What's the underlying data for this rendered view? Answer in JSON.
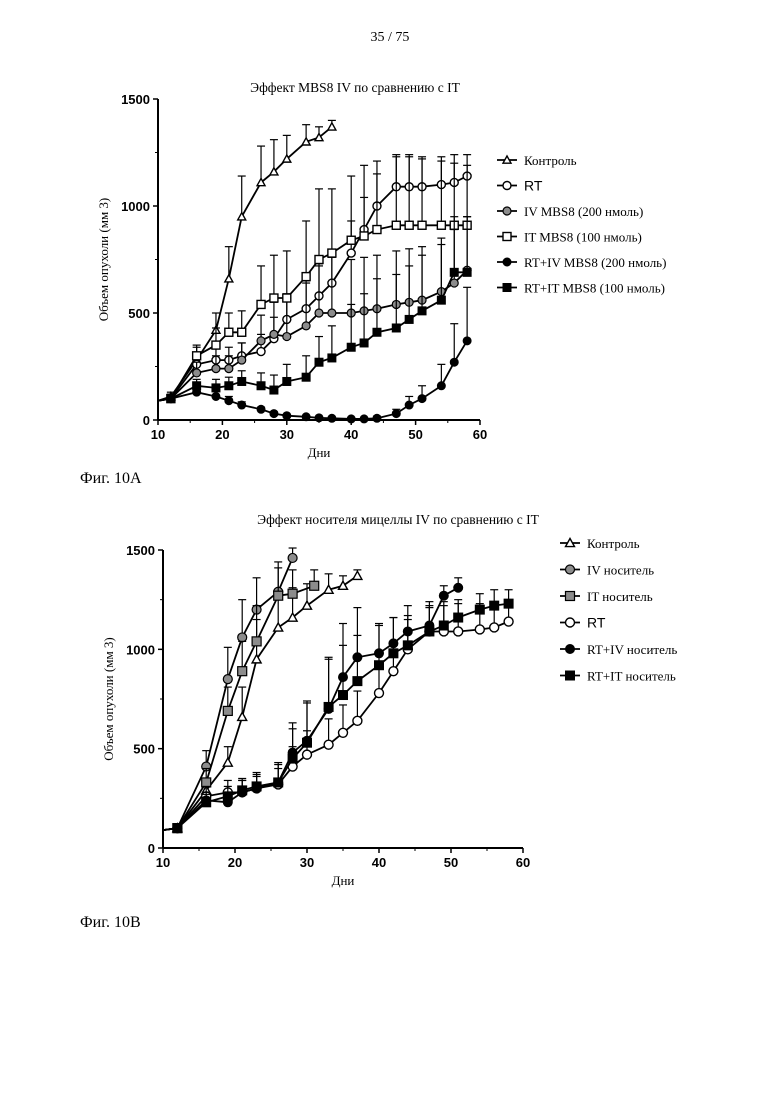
{
  "page": {
    "number": "35 / 75"
  },
  "figures": [
    {
      "caption": "Фиг. 10А"
    },
    {
      "caption": "Фиг. 10В"
    }
  ],
  "chart_data": [
    {
      "type": "line",
      "title": "Эффект MBS8 IV по сравнению с IT",
      "xlabel": "Дни",
      "ylabel": "Объем опухоли (мм 3)",
      "xlim": [
        10,
        60
      ],
      "ylim": [
        0,
        1500
      ],
      "xticks": [
        "10",
        "20",
        "30",
        "40",
        "50",
        "60"
      ],
      "yticks": [
        "0",
        "500",
        "1000",
        "1500"
      ],
      "legend_position": "right",
      "series": [
        {
          "name": "Контроль",
          "marker": "triangle-open",
          "x": [
            10,
            12,
            16,
            19,
            21,
            23,
            26,
            28,
            30,
            33,
            35,
            37
          ],
          "y": [
            90,
            110,
            280,
            420,
            660,
            950,
            1110,
            1160,
            1220,
            1300,
            1320,
            1370
          ],
          "err": [
            0,
            20,
            60,
            80,
            150,
            190,
            170,
            150,
            110,
            80,
            50,
            30
          ]
        },
        {
          "name": "RT",
          "marker": "circle-open",
          "x": [
            10,
            12,
            16,
            19,
            21,
            23,
            26,
            28,
            30,
            33,
            35,
            37,
            40,
            42,
            44,
            47,
            49,
            51,
            54,
            56,
            58
          ],
          "y": [
            90,
            100,
            260,
            280,
            280,
            300,
            320,
            380,
            470,
            520,
            580,
            640,
            780,
            890,
            1000,
            1090,
            1090,
            1090,
            1100,
            1110,
            1140
          ],
          "err": [
            0,
            20,
            50,
            60,
            60,
            60,
            80,
            100,
            120,
            130,
            140,
            150,
            150,
            150,
            150,
            150,
            150,
            140,
            130,
            130,
            100
          ]
        },
        {
          "name": "IV MBS8 (200 нмоль)",
          "marker": "circle-gray",
          "x": [
            10,
            12,
            16,
            19,
            21,
            23,
            26,
            28,
            30,
            33,
            35,
            37,
            40,
            42,
            44,
            47,
            49,
            51,
            54,
            56,
            58
          ],
          "y": [
            90,
            100,
            220,
            240,
            240,
            280,
            370,
            400,
            390,
            440,
            500,
            500,
            500,
            510,
            520,
            540,
            550,
            560,
            600,
            640,
            700
          ],
          "err": [
            0,
            20,
            50,
            60,
            60,
            80,
            120,
            150,
            170,
            200,
            230,
            260,
            250,
            250,
            250,
            250,
            250,
            250,
            250,
            250,
            250
          ]
        },
        {
          "name": "IT MBS8 (100 нмоль)",
          "marker": "square-open",
          "x": [
            10,
            12,
            16,
            19,
            21,
            23,
            26,
            28,
            30,
            33,
            35,
            37,
            40,
            42,
            44,
            47,
            49,
            51,
            54,
            56,
            58
          ],
          "y": [
            90,
            100,
            300,
            350,
            410,
            410,
            540,
            570,
            570,
            670,
            750,
            780,
            840,
            860,
            890,
            910,
            910,
            910,
            910,
            910,
            910
          ],
          "err": [
            0,
            20,
            50,
            80,
            90,
            100,
            180,
            200,
            220,
            260,
            330,
            300,
            300,
            330,
            320,
            320,
            320,
            310,
            300,
            290,
            280
          ]
        },
        {
          "name": "RT+IV MBS8 (200 нмоль)",
          "marker": "circle-filled",
          "x": [
            10,
            12,
            16,
            19,
            21,
            23,
            26,
            28,
            30,
            33,
            35,
            37,
            40,
            42,
            44,
            47,
            49,
            51,
            54,
            56,
            58
          ],
          "y": [
            90,
            100,
            130,
            110,
            90,
            70,
            50,
            30,
            20,
            15,
            10,
            8,
            5,
            5,
            8,
            30,
            70,
            100,
            160,
            270,
            370
          ],
          "err": [
            0,
            10,
            30,
            30,
            20,
            15,
            10,
            8,
            5,
            5,
            5,
            5,
            5,
            5,
            10,
            20,
            40,
            60,
            100,
            180,
            250
          ]
        },
        {
          "name": "RT+IT MBS8 (100 нмоль)",
          "marker": "square-filled",
          "x": [
            10,
            12,
            16,
            19,
            21,
            23,
            26,
            28,
            30,
            33,
            35,
            37,
            40,
            42,
            44,
            47,
            49,
            51,
            54,
            56,
            58
          ],
          "y": [
            90,
            100,
            160,
            150,
            160,
            180,
            160,
            140,
            180,
            200,
            270,
            290,
            340,
            360,
            410,
            430,
            470,
            510,
            560,
            690,
            690
          ],
          "err": [
            0,
            20,
            30,
            40,
            40,
            50,
            60,
            70,
            80,
            100,
            120,
            150,
            200,
            230,
            250,
            250,
            250,
            260,
            260,
            260,
            260
          ]
        }
      ]
    },
    {
      "type": "line",
      "title": "Эффект носителя мицеллы IV по сравнению с IT",
      "xlabel": "Дни",
      "ylabel": "Объем опухоли (мм 3)",
      "xlim": [
        10,
        60
      ],
      "ylim": [
        0,
        1500
      ],
      "xticks": [
        "10",
        "20",
        "30",
        "40",
        "50",
        "60"
      ],
      "yticks": [
        "0",
        "500",
        "1000",
        "1500"
      ],
      "legend_position": "right",
      "series": [
        {
          "name": "Контроль",
          "marker": "triangle-open",
          "x": [
            10,
            12,
            16,
            19,
            21,
            23,
            26,
            28,
            30,
            33,
            35,
            37
          ],
          "y": [
            90,
            100,
            290,
            430,
            660,
            950,
            1110,
            1160,
            1220,
            1300,
            1320,
            1370
          ],
          "err": [
            0,
            20,
            60,
            80,
            150,
            200,
            170,
            150,
            110,
            80,
            50,
            30
          ]
        },
        {
          "name": "IV носитель",
          "marker": "circle-gray",
          "x": [
            10,
            12,
            16,
            19,
            21,
            23,
            26,
            28
          ],
          "y": [
            90,
            100,
            410,
            850,
            1060,
            1200,
            1290,
            1460
          ],
          "err": [
            0,
            20,
            80,
            160,
            190,
            160,
            120,
            50
          ]
        },
        {
          "name": "IT носитель",
          "marker": "square-gray",
          "x": [
            10,
            12,
            16,
            19,
            21,
            23,
            26,
            28,
            31
          ],
          "y": [
            90,
            100,
            330,
            690,
            890,
            1040,
            1270,
            1280,
            1320
          ],
          "err": [
            0,
            20,
            70,
            120,
            150,
            180,
            170,
            120,
            80
          ]
        },
        {
          "name": "RT",
          "marker": "circle-open",
          "x": [
            10,
            12,
            16,
            19,
            21,
            23,
            26,
            28,
            30,
            33,
            35,
            37,
            40,
            42,
            44,
            47,
            49,
            51,
            54,
            56,
            58
          ],
          "y": [
            90,
            100,
            260,
            280,
            280,
            300,
            320,
            410,
            470,
            520,
            580,
            640,
            780,
            890,
            1000,
            1090,
            1090,
            1090,
            1100,
            1110,
            1140
          ],
          "err": [
            0,
            20,
            50,
            60,
            60,
            60,
            80,
            100,
            120,
            130,
            140,
            150,
            150,
            150,
            150,
            150,
            150,
            140,
            130,
            130,
            100
          ]
        },
        {
          "name": "RT+IV носитель",
          "marker": "circle-filled",
          "x": [
            10,
            12,
            16,
            19,
            21,
            23,
            26,
            28,
            30,
            33,
            35,
            37,
            40,
            42,
            44,
            47,
            49,
            51
          ],
          "y": [
            90,
            100,
            240,
            230,
            280,
            300,
            330,
            480,
            540,
            700,
            860,
            960,
            980,
            1030,
            1090,
            1120,
            1270,
            1310
          ],
          "err": [
            0,
            15,
            40,
            50,
            60,
            70,
            100,
            150,
            200,
            250,
            270,
            250,
            150,
            130,
            130,
            100,
            50,
            50
          ]
        },
        {
          "name": "RT+IT носитель",
          "marker": "square-filled",
          "x": [
            10,
            12,
            16,
            19,
            21,
            23,
            26,
            28,
            30,
            33,
            35,
            37,
            40,
            42,
            44,
            47,
            49,
            51,
            54,
            56,
            58
          ],
          "y": [
            90,
            100,
            230,
            260,
            290,
            310,
            330,
            450,
            530,
            710,
            770,
            840,
            920,
            980,
            1020,
            1090,
            1120,
            1160,
            1200,
            1220,
            1230
          ],
          "err": [
            0,
            15,
            40,
            50,
            60,
            70,
            90,
            150,
            200,
            250,
            250,
            230,
            200,
            180,
            150,
            120,
            100,
            90,
            80,
            80,
            70
          ]
        }
      ]
    }
  ]
}
